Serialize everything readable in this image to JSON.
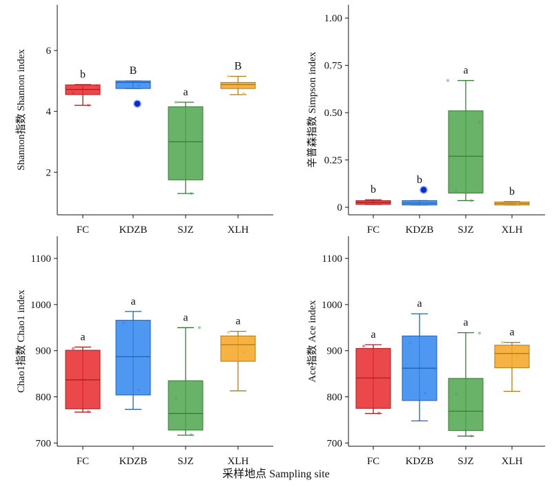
{
  "figure": {
    "xlabel": "采样地点 Sampling site"
  },
  "colors": {
    "FC": "#e8282b",
    "KDZB": "#2f86f0",
    "SJZ": "#4ea64e",
    "XLH": "#f5a623",
    "outlier": "#1428c8"
  },
  "chart_data": [
    {
      "type": "box",
      "ylabel": "Shannon指数 Shannon index",
      "categories": [
        "FC",
        "KDZB",
        "SJZ",
        "XLH"
      ],
      "ylim": [
        0.6,
        7.5
      ],
      "yticks": [
        2,
        4,
        6
      ],
      "grid": false,
      "boxes": [
        {
          "name": "FC",
          "min": 4.2,
          "q1": 4.55,
          "median": 4.72,
          "q3": 4.87,
          "max": 4.88,
          "label": "b",
          "points": [
            4.2,
            4.6,
            4.85
          ]
        },
        {
          "name": "KDZB",
          "min": 4.75,
          "q1": 4.75,
          "median": 4.95,
          "q3": 5.0,
          "max": 5.0,
          "label": "B",
          "outliers": [
            4.25
          ],
          "points": [
            4.85,
            4.95
          ]
        },
        {
          "name": "SJZ",
          "min": 1.3,
          "q1": 1.75,
          "median": 3.0,
          "q3": 4.15,
          "max": 4.3,
          "label": "a",
          "points": [
            1.3,
            4.3
          ]
        },
        {
          "name": "XLH",
          "min": 4.55,
          "q1": 4.75,
          "median": 4.88,
          "q3": 4.95,
          "max": 5.15,
          "label": "B",
          "points": [
            4.58,
            5.15
          ]
        }
      ]
    },
    {
      "type": "box",
      "ylabel": "辛普森指数 Simpson index",
      "categories": [
        "FC",
        "KDZB",
        "SJZ",
        "XLH"
      ],
      "ylim": [
        -0.04,
        1.07
      ],
      "yticks": [
        0,
        0.25,
        0.5,
        0.75,
        1.0
      ],
      "ytick_labels": [
        "0",
        "0.25",
        "0.50",
        "0.75",
        "1.00"
      ],
      "grid": false,
      "boxes": [
        {
          "name": "FC",
          "min": 0.015,
          "q1": 0.015,
          "median": 0.025,
          "q3": 0.035,
          "max": 0.04,
          "label": "b",
          "points": [
            0.02
          ]
        },
        {
          "name": "KDZB",
          "min": 0.012,
          "q1": 0.012,
          "median": 0.022,
          "q3": 0.035,
          "max": 0.035,
          "label": "b",
          "outliers": [
            0.092
          ],
          "points": [
            0.02
          ]
        },
        {
          "name": "SJZ",
          "min": 0.035,
          "q1": 0.075,
          "median": 0.27,
          "q3": 0.51,
          "max": 0.67,
          "label": "a",
          "points": [
            0.035,
            0.09,
            0.45,
            0.67
          ]
        },
        {
          "name": "XLH",
          "min": 0.012,
          "q1": 0.012,
          "median": 0.02,
          "q3": 0.028,
          "max": 0.03,
          "label": "b",
          "points": [
            0.018
          ]
        }
      ]
    },
    {
      "type": "box",
      "ylabel": "Chao1指数 Chao1 index",
      "categories": [
        "FC",
        "KDZB",
        "SJZ",
        "XLH"
      ],
      "ylim": [
        693,
        1148
      ],
      "yticks": [
        700,
        800,
        900,
        1000,
        1100
      ],
      "grid": false,
      "boxes": [
        {
          "name": "FC",
          "min": 767,
          "q1": 774,
          "median": 837,
          "q3": 901,
          "max": 908,
          "label": "a",
          "points": [
            768,
            905
          ]
        },
        {
          "name": "KDZB",
          "min": 773,
          "q1": 804,
          "median": 887,
          "q3": 966,
          "max": 985,
          "label": "a",
          "points": [
            815,
            960
          ]
        },
        {
          "name": "SJZ",
          "min": 717,
          "q1": 728,
          "median": 764,
          "q3": 835,
          "max": 950,
          "label": "a",
          "points": [
            718,
            797,
            950
          ]
        },
        {
          "name": "XLH",
          "min": 813,
          "q1": 877,
          "median": 913,
          "q3": 932,
          "max": 942,
          "label": "a",
          "points": [
            897,
            940
          ]
        }
      ]
    },
    {
      "type": "box",
      "ylabel": "Ace指数 Ace index",
      "categories": [
        "FC",
        "KDZB",
        "SJZ",
        "XLH"
      ],
      "ylim": [
        693,
        1148
      ],
      "yticks": [
        700,
        800,
        900,
        1000,
        1100
      ],
      "grid": false,
      "boxes": [
        {
          "name": "FC",
          "min": 764,
          "q1": 775,
          "median": 841,
          "q3": 905,
          "max": 913,
          "label": "a",
          "points": [
            765,
            910
          ]
        },
        {
          "name": "KDZB",
          "min": 748,
          "q1": 792,
          "median": 862,
          "q3": 932,
          "max": 980,
          "label": "a",
          "points": [
            808,
            917
          ]
        },
        {
          "name": "SJZ",
          "min": 715,
          "q1": 727,
          "median": 769,
          "q3": 840,
          "max": 939,
          "label": "a",
          "points": [
            715,
            806,
            938
          ]
        },
        {
          "name": "XLH",
          "min": 812,
          "q1": 863,
          "median": 894,
          "q3": 912,
          "max": 918,
          "label": "a",
          "points": [
            888,
            918
          ]
        }
      ]
    }
  ]
}
